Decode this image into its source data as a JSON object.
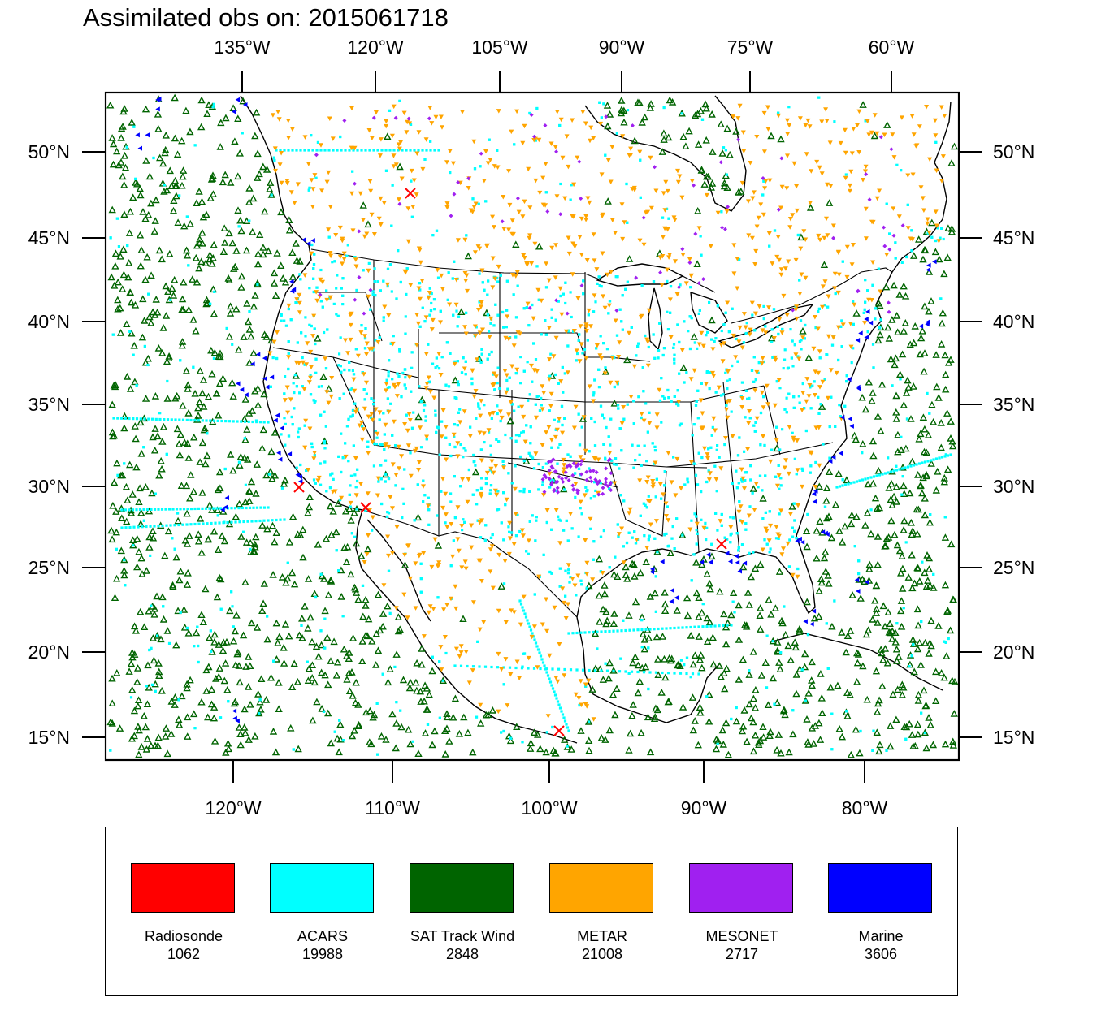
{
  "title": "Assimilated obs on: 2015061718",
  "top_axis_labels": [
    "135°W",
    "120°W",
    "105°W",
    "90°W",
    "75°W",
    "60°W"
  ],
  "bottom_axis_labels": [
    "120°W",
    "110°W",
    "100°W",
    "90°W",
    "80°W"
  ],
  "lat_labels": [
    "50°N",
    "45°N",
    "40°N",
    "35°N",
    "30°N",
    "25°N",
    "20°N",
    "15°N"
  ],
  "legend": [
    {
      "name": "Radiosonde",
      "count": "1062",
      "color": "#ff0000"
    },
    {
      "name": "ACARS",
      "count": "19988",
      "color": "#00ffff"
    },
    {
      "name": "SAT Track Wind",
      "count": "2848",
      "color": "#006400"
    },
    {
      "name": "METAR",
      "count": "21008",
      "color": "#ffa500"
    },
    {
      "name": "MESONET",
      "count": "2717",
      "color": "#a020f0"
    },
    {
      "name": "Marine",
      "count": "3606",
      "color": "#0000ff"
    }
  ]
}
